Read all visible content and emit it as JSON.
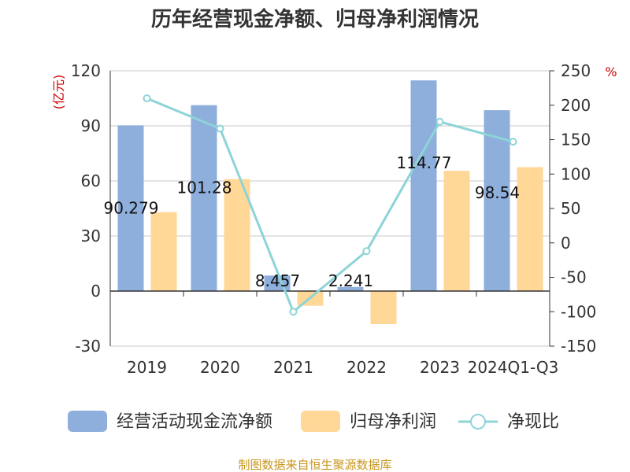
{
  "chart_data": {
    "type": "bar",
    "title": "历年经营现金净额、归母净利润情况",
    "categories": [
      "2019",
      "2020",
      "2021",
      "2022",
      "2023",
      "2024Q1-Q3"
    ],
    "left_unit": "(亿元)",
    "right_unit": "%",
    "ylim": [
      -30,
      120
    ],
    "y_ticks": [
      -30,
      0,
      30,
      60,
      90,
      120
    ],
    "y2lim": [
      -150,
      250
    ],
    "y2_ticks": [
      -150,
      -100,
      -50,
      0,
      50,
      100,
      150,
      200,
      250
    ],
    "grid": true,
    "legend_position": "bottom",
    "series": [
      {
        "name": "经营活动现金流净额",
        "type": "bar",
        "axis": "left",
        "color": "#8eaedc",
        "values": [
          90.279,
          101.28,
          8.457,
          2.241,
          114.77,
          98.54
        ],
        "labels": [
          "90.279",
          "101.28",
          "8.457",
          "2.241",
          "114.77",
          "98.54"
        ]
      },
      {
        "name": "归母净利润",
        "type": "bar",
        "axis": "left",
        "color": "#ffd797",
        "values": [
          43,
          61,
          -8,
          -18,
          65.5,
          67.5
        ]
      },
      {
        "name": "净现比",
        "type": "line",
        "axis": "right",
        "color": "#8dd4d8",
        "values": [
          210,
          166,
          -100,
          -12,
          176,
          147
        ]
      }
    ],
    "source": "制图数据来自恒生聚源数据库"
  }
}
